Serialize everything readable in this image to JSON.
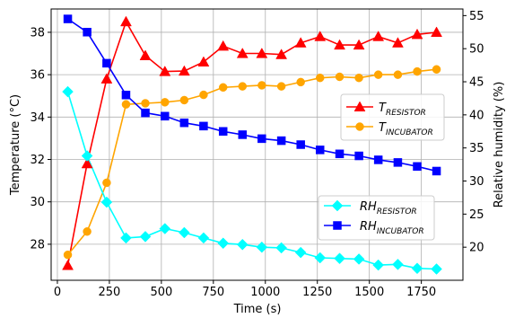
{
  "chart_data": {
    "type": "line",
    "xlabel": "Time (s)",
    "ylabel_left": "Temperature (°C)",
    "ylabel_right": "Relative humidity (%)",
    "xlim": [
      -30,
      1950
    ],
    "ylim_left": [
      26.3,
      39.1
    ],
    "ylim_right": [
      15.0,
      56.0
    ],
    "grid": true,
    "x_ticks": [
      0,
      250,
      500,
      750,
      1000,
      1250,
      1500,
      1750
    ],
    "y_left_ticks": [
      28,
      30,
      32,
      34,
      36,
      38
    ],
    "y_right_ticks": [
      20,
      25,
      30,
      35,
      40,
      45,
      50,
      55
    ],
    "legends": [
      {
        "placement": "center-right",
        "series": [
          0,
          1
        ]
      },
      {
        "placement": "lower-right",
        "series": [
          2,
          3
        ]
      }
    ],
    "series": [
      {
        "name": "T_RESISTOR",
        "label_main": "T",
        "label_sub": "RESISTOR",
        "axis": "left",
        "color": "#ff0000",
        "marker": "triangle",
        "x": [
          50,
          143,
          237,
          330,
          423,
          517,
          610,
          703,
          797,
          890,
          983,
          1077,
          1170,
          1263,
          1357,
          1450,
          1543,
          1637,
          1730,
          1823
        ],
        "y": [
          27.0,
          31.8,
          35.8,
          38.5,
          36.9,
          36.15,
          36.17,
          36.6,
          37.35,
          37.0,
          37.0,
          36.95,
          37.5,
          37.8,
          37.4,
          37.4,
          37.8,
          37.5,
          37.9,
          38.0
        ]
      },
      {
        "name": "T_INCUBATOR",
        "label_main": "T",
        "label_sub": "INCUBATOR",
        "axis": "left",
        "color": "#ffa500",
        "marker": "circle",
        "x": [
          50,
          143,
          237,
          330,
          423,
          517,
          610,
          703,
          797,
          890,
          983,
          1077,
          1170,
          1263,
          1357,
          1450,
          1543,
          1637,
          1730,
          1823
        ],
        "y": [
          27.5,
          28.6,
          30.9,
          34.6,
          34.65,
          34.7,
          34.8,
          35.05,
          35.4,
          35.45,
          35.5,
          35.45,
          35.65,
          35.85,
          35.9,
          35.85,
          36.0,
          36.0,
          36.15,
          36.25
        ]
      },
      {
        "name": "RH_RESISTOR",
        "label_main": "RH",
        "label_sub": "RESISTOR",
        "axis": "right",
        "color": "#00ffff",
        "marker": "diamond",
        "x": [
          50,
          143,
          237,
          330,
          423,
          517,
          610,
          703,
          797,
          890,
          983,
          1077,
          1170,
          1263,
          1357,
          1450,
          1543,
          1637,
          1730,
          1823
        ],
        "y": [
          43.5,
          33.8,
          26.8,
          21.4,
          21.6,
          22.8,
          22.2,
          21.4,
          20.6,
          20.4,
          20.0,
          19.9,
          19.2,
          18.4,
          18.3,
          18.2,
          17.3,
          17.4,
          16.8,
          16.7
        ]
      },
      {
        "name": "RH_INCUBATOR",
        "label_main": "RH",
        "label_sub": "INCUBATOR",
        "axis": "right",
        "color": "#0000ff",
        "marker": "square",
        "x": [
          50,
          143,
          237,
          330,
          423,
          517,
          610,
          703,
          797,
          890,
          983,
          1077,
          1170,
          1263,
          1357,
          1450,
          1543,
          1637,
          1730,
          1823
        ],
        "y": [
          54.5,
          52.5,
          47.8,
          43.0,
          40.3,
          39.8,
          38.8,
          38.3,
          37.5,
          37.0,
          36.4,
          36.1,
          35.5,
          34.7,
          34.1,
          33.8,
          33.2,
          32.8,
          32.2,
          31.5
        ]
      }
    ]
  }
}
